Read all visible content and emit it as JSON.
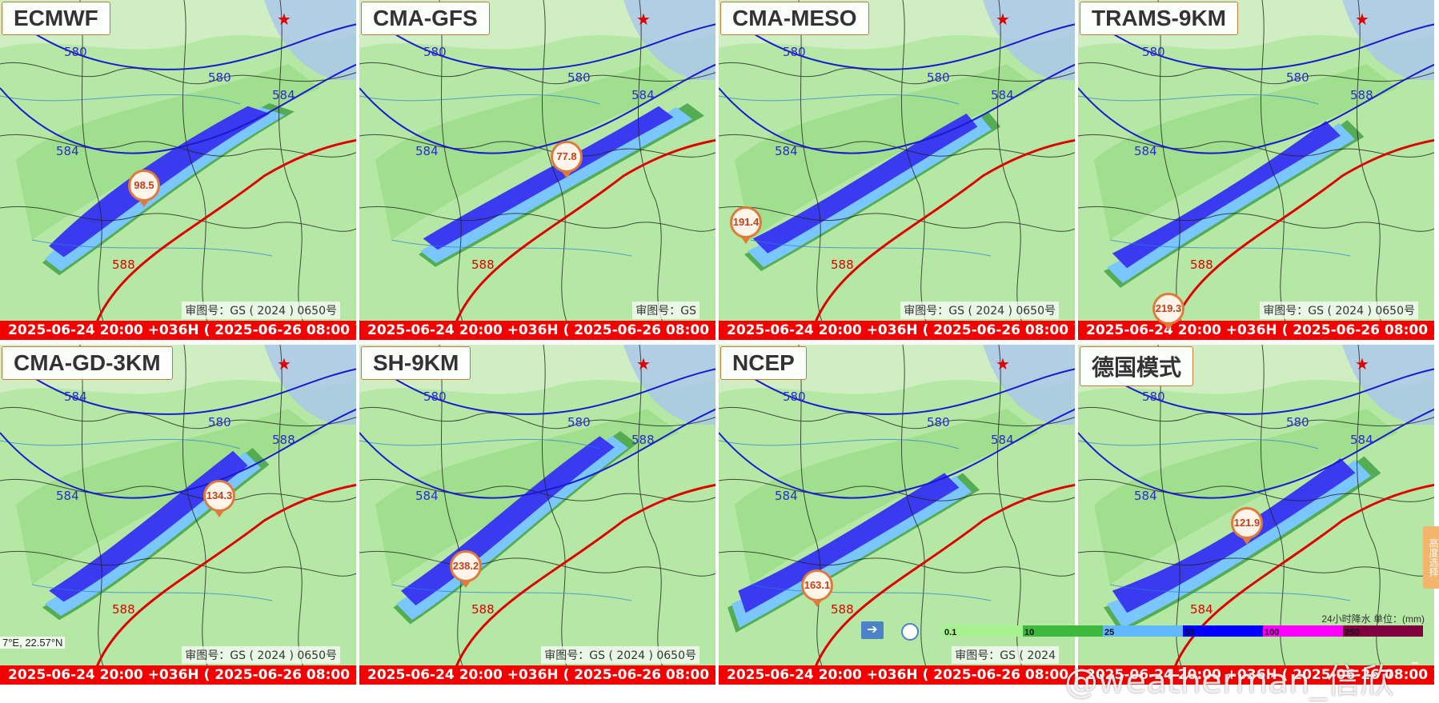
{
  "panels": [
    {
      "title": "ECMWF",
      "timestamp": "2025-06-24 20:00 +036H ( 2025-06-26 08:00 )",
      "gs": "审图号：GS ( 2024 ) 0650号",
      "max": "98.5",
      "contours": [
        "580",
        "580",
        "584",
        "584",
        "584",
        "588"
      ]
    },
    {
      "title": "CMA-GFS",
      "timestamp": "2025-06-24 20:00 +036H ( 2025-06-26 08:00 )",
      "gs": "审图号：GS",
      "max": "77.8",
      "contours": [
        "580",
        "580",
        "584",
        "584",
        "588"
      ]
    },
    {
      "title": "CMA-MESO",
      "timestamp": "2025-06-24 20:00 +036H ( 2025-06-26 08:00 )",
      "gs": "审图号：GS ( 2024 ) 0650号",
      "max": "191.4",
      "contours": [
        "580",
        "580",
        "584",
        "584",
        "588"
      ]
    },
    {
      "title": "TRAMS-9KM",
      "timestamp": "2025-06-24 20:00 +036H ( 2025-06-26 08:00 )",
      "gs": "审图号：GS ( 2024 ) 0650号",
      "max": "219.3",
      "contours": [
        "580",
        "580",
        "584",
        "588"
      ]
    },
    {
      "title": "CMA-GD-3KM",
      "timestamp": "2025-06-24 20:00 +036H ( 2025-06-26 08:00 )",
      "gs": "审图号：GS ( 2024 ) 0650号",
      "max": "134.3",
      "contours": [
        "584",
        "580",
        "584",
        "588"
      ]
    },
    {
      "title": "SH-9KM",
      "timestamp": "2025-06-24 20:00 +036H ( 2025-06-26 08:00 )",
      "gs": "审图号：GS ( 2024 ) 0650号",
      "max": "238.2",
      "contours": [
        "580",
        "580",
        "584",
        "588"
      ]
    },
    {
      "title": "NCEP",
      "timestamp": "2025-06-24 20:00 +036H ( 2025-06-26 08:00 )",
      "gs": "审图号：GS ( 2024",
      "max": "163.1",
      "contours": [
        "580",
        "580",
        "584",
        "584",
        "588"
      ]
    },
    {
      "title": "德国模式",
      "timestamp": "2025-06-24 20:00 +036H ( 2025-06-26 08:00 )",
      "gs": "",
      "max": "121.9",
      "contours": [
        "580",
        "580",
        "584",
        "584"
      ]
    }
  ],
  "legend": {
    "label": "24小时降水 单位：(mm)",
    "ticks": [
      "0.1",
      "10",
      "25",
      "50",
      "100",
      "250"
    ],
    "colors": [
      "#a6f28f",
      "#3dba3d",
      "#61b8ff",
      "#0000fe",
      "#fa00fa",
      "#800040"
    ]
  },
  "side_button": "高度选择",
  "coord_readout": "7°E, 22.57°N",
  "watermark": "@weatherman_信欣"
}
